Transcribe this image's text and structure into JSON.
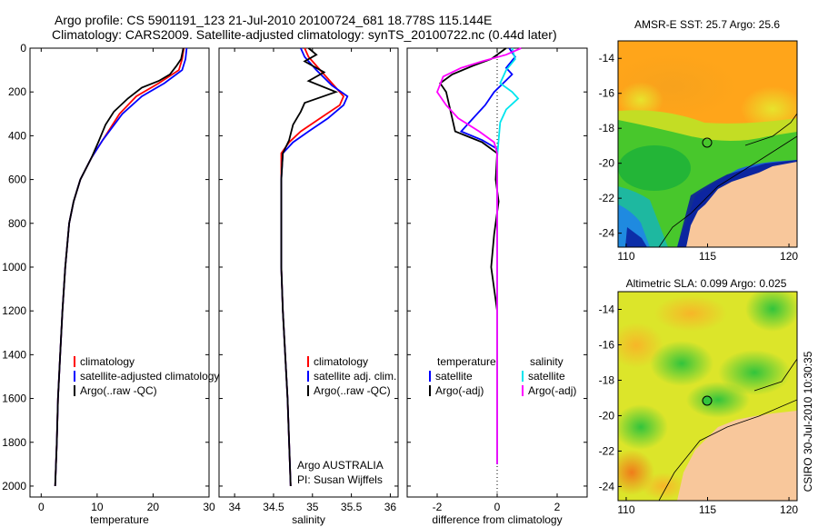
{
  "header": {
    "line1": "Argo profile: CS 5901191_123 21-Jul-2010 20100724_681 18.778S 115.144E",
    "line2": "Climatology: CARS2009. Satellite-adjusted climatology: synTS_20100722.nc (0.44d later)"
  },
  "side_label": "CSIRO 30-Jul-2010 10:30:35",
  "colors": {
    "climatology": "#ff0000",
    "satellite": "#0000ff",
    "argo": "#000000",
    "argo_adj": "#ff00ff",
    "sat_diff": "#00e5ee",
    "land": "#f8c79b"
  },
  "chart_data": [
    {
      "type": "line",
      "panel": "temperature",
      "xlabel": "temperature",
      "ylabel": "",
      "xlim": [
        -2,
        30
      ],
      "ylim": [
        2050,
        0
      ],
      "xticks": [
        0,
        10,
        20,
        30
      ],
      "yticks": [
        0,
        200,
        400,
        600,
        800,
        1000,
        1200,
        1400,
        1600,
        1800,
        2000
      ],
      "legend": [
        "climatology",
        "satellite-adjusted climatology",
        "Argo(..raw -QC)"
      ],
      "series": [
        {
          "name": "climatology",
          "color": "#ff0000",
          "points": [
            [
              25.5,
              0
            ],
            [
              25.2,
              50
            ],
            [
              24.6,
              100
            ],
            [
              21,
              160
            ],
            [
              17,
              220
            ],
            [
              14,
              300
            ],
            [
              11,
              420
            ],
            [
              9,
              500
            ],
            [
              7,
              600
            ],
            [
              5.8,
              700
            ],
            [
              5,
              800
            ],
            [
              4.3,
              1000
            ],
            [
              3.8,
              1200
            ],
            [
              3.4,
              1400
            ],
            [
              3,
              1600
            ],
            [
              2.8,
              1800
            ],
            [
              2.5,
              2000
            ]
          ]
        },
        {
          "name": "satellite-adjusted climatology",
          "color": "#0000ff",
          "points": [
            [
              26,
              0
            ],
            [
              25.8,
              50
            ],
            [
              25.2,
              100
            ],
            [
              22,
              160
            ],
            [
              18,
              220
            ],
            [
              14.5,
              300
            ],
            [
              11,
              420
            ],
            [
              9,
              500
            ],
            [
              7,
              600
            ],
            [
              5.8,
              700
            ],
            [
              5,
              800
            ],
            [
              4.3,
              1000
            ],
            [
              3.8,
              1200
            ],
            [
              3.4,
              1400
            ],
            [
              3,
              1600
            ],
            [
              2.8,
              1800
            ],
            [
              2.5,
              2000
            ]
          ]
        },
        {
          "name": "Argo(..raw -QC)",
          "color": "#000000",
          "points": [
            [
              25.4,
              0
            ],
            [
              25,
              50
            ],
            [
              24.2,
              80
            ],
            [
              23,
              120
            ],
            [
              21,
              150
            ],
            [
              18,
              180
            ],
            [
              15.5,
              230
            ],
            [
              13,
              290
            ],
            [
              11.5,
              350
            ],
            [
              10.2,
              430
            ],
            [
              9,
              500
            ],
            [
              7,
              600
            ],
            [
              5.8,
              700
            ],
            [
              5,
              800
            ],
            [
              4.3,
              1000
            ],
            [
              3.8,
              1200
            ],
            [
              3.4,
              1400
            ],
            [
              3,
              1600
            ],
            [
              2.8,
              1800
            ],
            [
              2.5,
              2000
            ]
          ]
        }
      ]
    },
    {
      "type": "line",
      "panel": "salinity",
      "xlabel": "salinity",
      "ylabel": "",
      "xlim": [
        33.8,
        36.1
      ],
      "ylim": [
        2050,
        0
      ],
      "xticks": [
        34,
        34.5,
        35,
        35.5,
        36
      ],
      "legend": [
        "climatology",
        "satellite adj. clim.",
        "Argo(..raw -QC)"
      ],
      "annotations": [
        "Argo AUSTRALIA",
        "PI: Susan Wijffels"
      ],
      "series": [
        {
          "name": "climatology",
          "color": "#ff0000",
          "points": [
            [
              34.9,
              0
            ],
            [
              34.95,
              40
            ],
            [
              35.1,
              100
            ],
            [
              35.3,
              180
            ],
            [
              35.4,
              220
            ],
            [
              35.35,
              260
            ],
            [
              35.1,
              320
            ],
            [
              34.85,
              380
            ],
            [
              34.7,
              430
            ],
            [
              34.6,
              480
            ],
            [
              34.6,
              600
            ],
            [
              34.6,
              1000
            ],
            [
              34.62,
              1200
            ],
            [
              34.65,
              1400
            ],
            [
              34.68,
              1600
            ],
            [
              34.7,
              1800
            ],
            [
              34.72,
              2000
            ]
          ]
        },
        {
          "name": "satellite adj. clim.",
          "color": "#0000ff",
          "points": [
            [
              34.85,
              0
            ],
            [
              34.9,
              40
            ],
            [
              35.05,
              100
            ],
            [
              35.25,
              170
            ],
            [
              35.45,
              220
            ],
            [
              35.4,
              260
            ],
            [
              35.2,
              320
            ],
            [
              34.95,
              380
            ],
            [
              34.75,
              430
            ],
            [
              34.62,
              480
            ],
            [
              34.6,
              600
            ],
            [
              34.6,
              1000
            ],
            [
              34.62,
              1200
            ],
            [
              34.65,
              1400
            ],
            [
              34.68,
              1600
            ],
            [
              34.7,
              1800
            ],
            [
              34.72,
              2000
            ]
          ]
        },
        {
          "name": "Argo(..raw -QC)",
          "color": "#000000",
          "points": [
            [
              34.95,
              0
            ],
            [
              35.05,
              30
            ],
            [
              34.9,
              60
            ],
            [
              35.15,
              110
            ],
            [
              34.95,
              150
            ],
            [
              35.3,
              200
            ],
            [
              34.9,
              250
            ],
            [
              34.85,
              290
            ],
            [
              34.75,
              350
            ],
            [
              34.7,
              420
            ],
            [
              34.62,
              480
            ],
            [
              34.6,
              600
            ],
            [
              34.6,
              1000
            ],
            [
              34.62,
              1200
            ],
            [
              34.65,
              1400
            ],
            [
              34.68,
              1600
            ],
            [
              34.7,
              1800
            ],
            [
              34.72,
              2000
            ]
          ]
        }
      ]
    },
    {
      "type": "line",
      "panel": "difference",
      "xlabel": "difference from climatology",
      "ylabel": "",
      "xlim": [
        -3,
        3
      ],
      "ylim": [
        2050,
        0
      ],
      "xticks": [
        -2,
        0,
        2
      ],
      "legend": [
        "temperature",
        "satellite",
        "Argo(-adj)",
        "salinity",
        "satellite",
        "Argo(-adj)"
      ],
      "series": [
        {
          "name": "temperature satellite",
          "color": "#0000ff",
          "points": [
            [
              0.4,
              0
            ],
            [
              0.6,
              40
            ],
            [
              0.3,
              90
            ],
            [
              0.5,
              120
            ],
            [
              0.2,
              160
            ],
            [
              -0.1,
              200
            ],
            [
              -0.4,
              260
            ],
            [
              -0.8,
              320
            ],
            [
              -1.2,
              380
            ],
            [
              -0.5,
              420
            ],
            [
              0,
              460
            ],
            [
              0,
              600
            ],
            [
              0,
              1000
            ],
            [
              0,
              1400
            ],
            [
              0,
              1900
            ]
          ]
        },
        {
          "name": "temperature Argo(-adj)",
          "color": "#000000",
          "points": [
            [
              0.3,
              0
            ],
            [
              -0.2,
              50
            ],
            [
              -0.8,
              80
            ],
            [
              -1.5,
              120
            ],
            [
              -1.9,
              160
            ],
            [
              -1.7,
              200
            ],
            [
              -1.6,
              260
            ],
            [
              -1.5,
              320
            ],
            [
              -1.4,
              380
            ],
            [
              -0.5,
              430
            ],
            [
              0,
              480
            ],
            [
              -0.05,
              600
            ],
            [
              0.05,
              700
            ],
            [
              -0.1,
              850
            ],
            [
              -0.2,
              1000
            ],
            [
              -0.1,
              1100
            ],
            [
              0,
              1200
            ],
            [
              0,
              1400
            ],
            [
              0,
              1900
            ]
          ]
        },
        {
          "name": "salinity satellite",
          "color": "#00e5ee",
          "points": [
            [
              0.5,
              0
            ],
            [
              0.6,
              50
            ],
            [
              0.3,
              100
            ],
            [
              0.1,
              160
            ],
            [
              0.5,
              200
            ],
            [
              0.7,
              230
            ],
            [
              0.3,
              280
            ],
            [
              0.1,
              340
            ],
            [
              0.05,
              420
            ],
            [
              0,
              500
            ],
            [
              0,
              600
            ],
            [
              0,
              1000
            ],
            [
              0,
              1400
            ],
            [
              0,
              1900
            ]
          ]
        },
        {
          "name": "salinity Argo(-adj)",
          "color": "#ff00ff",
          "points": [
            [
              0.8,
              0
            ],
            [
              0.3,
              30
            ],
            [
              -0.5,
              60
            ],
            [
              -1.2,
              90
            ],
            [
              -1.8,
              130
            ],
            [
              -2,
              200
            ],
            [
              -1.7,
              260
            ],
            [
              -1.3,
              320
            ],
            [
              -0.6,
              380
            ],
            [
              -0.1,
              430
            ],
            [
              0,
              480
            ],
            [
              0,
              600
            ],
            [
              0,
              1000
            ],
            [
              0,
              1400
            ],
            [
              0,
              1900
            ]
          ]
        }
      ]
    },
    {
      "type": "heatmap",
      "panel": "sst",
      "title": "AMSR-E SST: 25.7 Argo: 25.6",
      "xlim": [
        109.5,
        120.5
      ],
      "ylim": [
        -24.8,
        -13
      ],
      "xticks": [
        110,
        115,
        120
      ],
      "yticks": [
        -14,
        -16,
        -18,
        -20,
        -22,
        -24
      ],
      "marker": {
        "lon": 115.144,
        "lat": -18.778
      }
    },
    {
      "type": "heatmap",
      "panel": "sla",
      "title": "Altimetric SLA: 0.099 Argo: 0.025",
      "xlim": [
        109.5,
        120.5
      ],
      "ylim": [
        -24.8,
        -13
      ],
      "xticks": [
        110,
        115,
        120
      ],
      "yticks": [
        -14,
        -16,
        -18,
        -20,
        -22,
        -24
      ],
      "marker": {
        "lon": 115.144,
        "lat": -18.778
      }
    }
  ]
}
